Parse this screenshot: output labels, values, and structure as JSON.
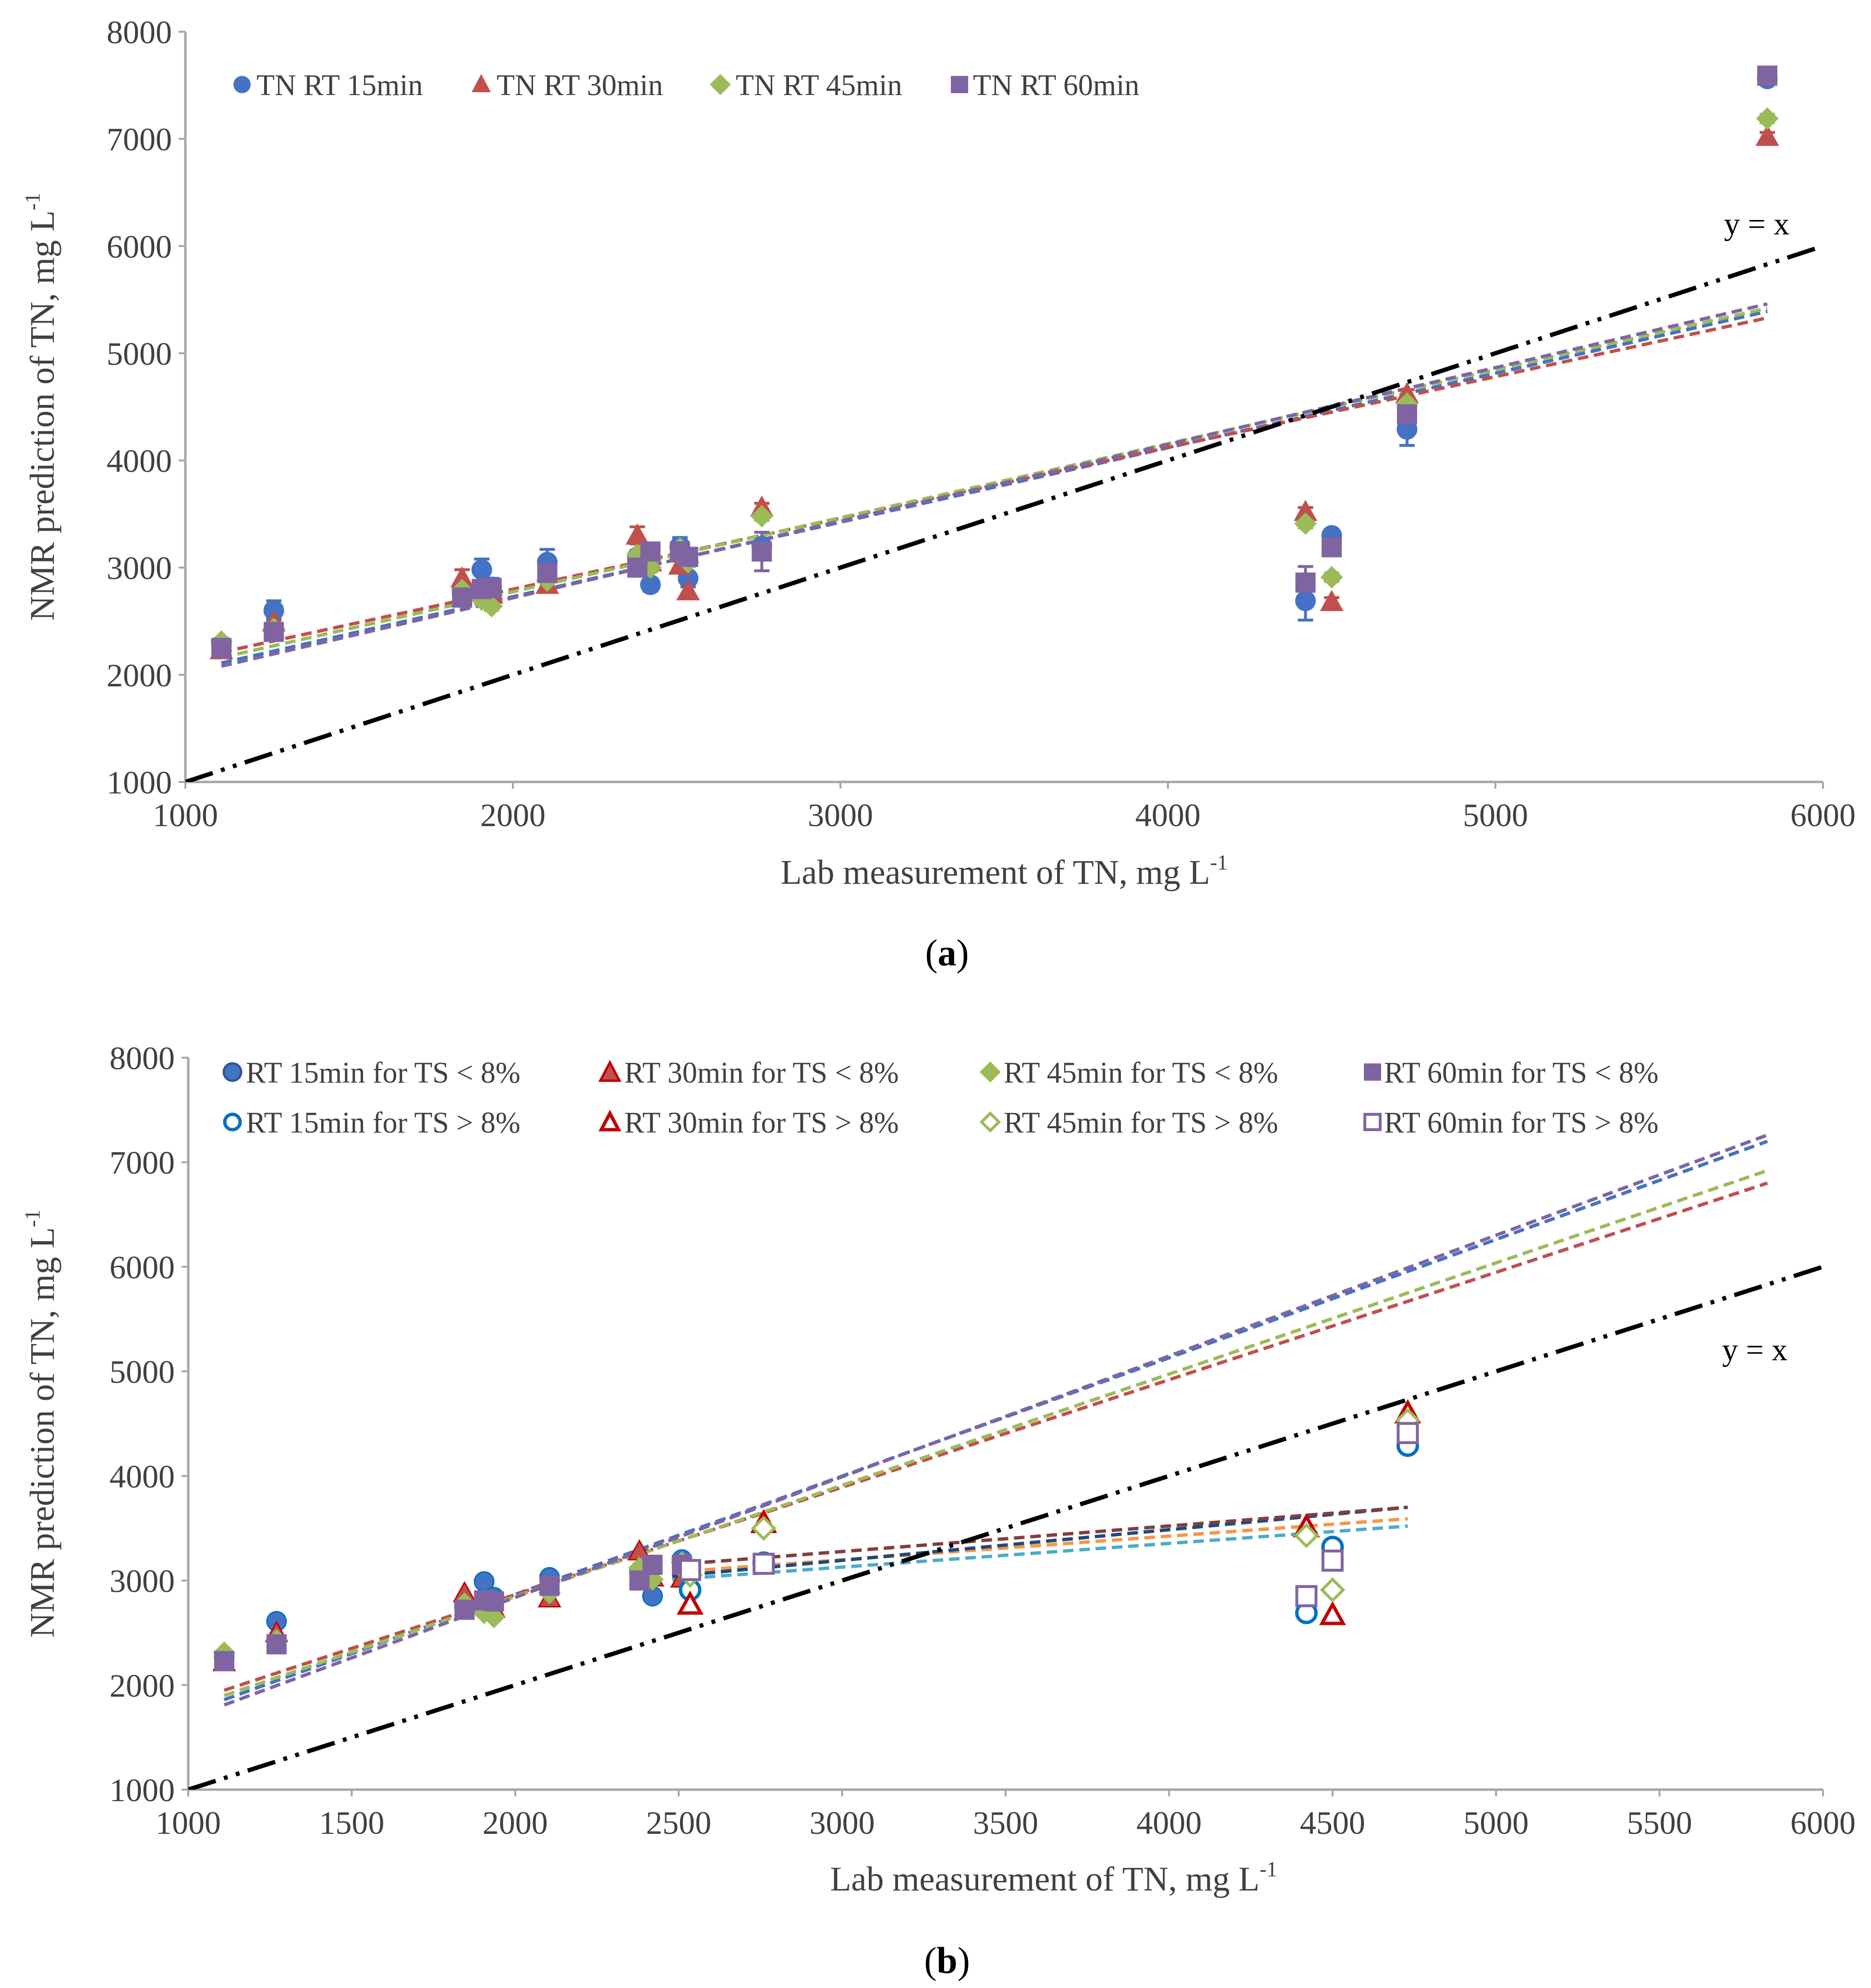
{
  "colors": {
    "blue": "#4472C4",
    "red": "#C0504D",
    "green": "#9BBB59",
    "purple": "#8064A2",
    "black": "#000000",
    "axis": "#A6A6A6"
  },
  "chart_data": [
    {
      "id": "a",
      "type": "scatter",
      "caption": "(a)",
      "xlabel": "Lab measurement of TN, mg L-1",
      "ylabel": "NMR prediction of TN, mg L-1",
      "xlim": [
        1000,
        6000
      ],
      "ylim": [
        1000,
        8000
      ],
      "xticks": [
        1000,
        2000,
        3000,
        4000,
        5000,
        6000
      ],
      "yticks": [
        1000,
        2000,
        3000,
        4000,
        5000,
        6000,
        7000,
        8000
      ],
      "reference_line": {
        "label": "y = x",
        "x": [
          1000,
          6000
        ],
        "y": [
          1000,
          6000
        ]
      },
      "series": [
        {
          "name": "TN RT 15min",
          "color": "blue",
          "marker": "circle",
          "points": [
            [
              1110,
              2280
            ],
            [
              1270,
              2600
            ],
            [
              1845,
              2750
            ],
            [
              1905,
              2980
            ],
            [
              1935,
              2820
            ],
            [
              2105,
              3050
            ],
            [
              2380,
              3100
            ],
            [
              2420,
              2840
            ],
            [
              2510,
              3200
            ],
            [
              2535,
              2900
            ],
            [
              2760,
              3200
            ],
            [
              4420,
              2690
            ],
            [
              4500,
              3300
            ],
            [
              4730,
              4290
            ],
            [
              5830,
              7560
            ]
          ],
          "errors": [
            30,
            90,
            40,
            100,
            80,
            120,
            40,
            60,
            80,
            40,
            40,
            180,
            40,
            150,
            40
          ],
          "trend": {
            "x": [
              1110,
              5830
            ],
            "y": [
              2110,
              5390
            ]
          }
        },
        {
          "name": "TN RT 30min",
          "color": "red",
          "marker": "triangle",
          "points": [
            [
              1110,
              2230
            ],
            [
              1270,
              2490
            ],
            [
              1845,
              2900
            ],
            [
              1905,
              2780
            ],
            [
              1935,
              2750
            ],
            [
              2105,
              2840
            ],
            [
              2380,
              3300
            ],
            [
              2420,
              3050
            ],
            [
              2510,
              3020
            ],
            [
              2535,
              2780
            ],
            [
              2760,
              3560
            ],
            [
              4420,
              3520
            ],
            [
              4500,
              2680
            ],
            [
              4730,
              4620
            ],
            [
              5830,
              7020
            ]
          ],
          "errors": [
            30,
            40,
            80,
            40,
            40,
            40,
            80,
            40,
            40,
            40,
            40,
            40,
            40,
            40,
            40
          ],
          "trend": {
            "x": [
              1110,
              5830
            ],
            "y": [
              2210,
              5330
            ]
          }
        },
        {
          "name": "TN RT 45min",
          "color": "green",
          "marker": "diamond",
          "points": [
            [
              1110,
              2310
            ],
            [
              1270,
              2430
            ],
            [
              1845,
              2790
            ],
            [
              1905,
              2700
            ],
            [
              1935,
              2640
            ],
            [
              2105,
              2880
            ],
            [
              2380,
              3120
            ],
            [
              2420,
              3000
            ],
            [
              2510,
              3180
            ],
            [
              2535,
              3050
            ],
            [
              2760,
              3480
            ],
            [
              4420,
              3410
            ],
            [
              4500,
              2910
            ],
            [
              4730,
              4530
            ],
            [
              5830,
              7190
            ]
          ],
          "errors": [
            30,
            30,
            40,
            40,
            40,
            40,
            40,
            40,
            40,
            40,
            40,
            40,
            40,
            40,
            40
          ],
          "trend": {
            "x": [
              1110,
              5830
            ],
            "y": [
              2160,
              5420
            ]
          }
        },
        {
          "name": "TN RT 60min",
          "color": "purple",
          "marker": "square",
          "points": [
            [
              1110,
              2250
            ],
            [
              1270,
              2400
            ],
            [
              1845,
              2720
            ],
            [
              1905,
              2800
            ],
            [
              1935,
              2810
            ],
            [
              2105,
              2950
            ],
            [
              2380,
              3000
            ],
            [
              2420,
              3150
            ],
            [
              2510,
              3150
            ],
            [
              2535,
              3100
            ],
            [
              2760,
              3150
            ],
            [
              4420,
              2860
            ],
            [
              4500,
              3190
            ],
            [
              4730,
              4430
            ],
            [
              5830,
              7590
            ]
          ],
          "errors": [
            30,
            30,
            40,
            40,
            40,
            40,
            40,
            40,
            40,
            40,
            180,
            150,
            60,
            40,
            40
          ],
          "trend": {
            "x": [
              1110,
              5830
            ],
            "y": [
              2080,
              5460
            ]
          }
        }
      ]
    },
    {
      "id": "b",
      "type": "scatter",
      "caption": "(b)",
      "xlabel": "Lab measurement of TN, mg L-1",
      "ylabel": "NMR prediction of TN, mg L-1",
      "xlim": [
        1000,
        6000
      ],
      "ylim": [
        1000,
        8000
      ],
      "xticks": [
        1000,
        1500,
        2000,
        2500,
        3000,
        3500,
        4000,
        4500,
        5000,
        5500,
        6000
      ],
      "yticks": [
        1000,
        2000,
        3000,
        4000,
        5000,
        6000,
        7000,
        8000
      ],
      "reference_line": {
        "label": "y = x",
        "x": [
          1000,
          6000
        ],
        "y": [
          1000,
          6000
        ]
      },
      "series": [
        {
          "name": "RT 15min for TS < 8%",
          "color": "blue",
          "marker": "circle",
          "filled": true,
          "points": [
            [
              1110,
              2270
            ],
            [
              1270,
              2610
            ],
            [
              1845,
              2750
            ],
            [
              1905,
              2990
            ],
            [
              1935,
              2840
            ],
            [
              2105,
              3030
            ],
            [
              2380,
              3080
            ],
            [
              2420,
              2850
            ],
            [
              2510,
              3200
            ]
          ],
          "trend": {
            "x": [
              1110,
              5830
            ],
            "y": [
              1860,
              7200
            ]
          }
        },
        {
          "name": "RT 30min for TS < 8%",
          "color": "red",
          "marker": "triangle",
          "filled": true,
          "points": [
            [
              1110,
              2220
            ],
            [
              1270,
              2500
            ],
            [
              1845,
              2880
            ],
            [
              1905,
              2780
            ],
            [
              1935,
              2730
            ],
            [
              2105,
              2830
            ],
            [
              2380,
              3280
            ],
            [
              2420,
              3030
            ],
            [
              2510,
              3020
            ]
          ],
          "trend": {
            "x": [
              1110,
              5830
            ],
            "y": [
              1950,
              6800
            ]
          }
        },
        {
          "name": "RT 45min for TS < 8%",
          "color": "green",
          "marker": "diamond",
          "filled": true,
          "points": [
            [
              1110,
              2310
            ],
            [
              1270,
              2430
            ],
            [
              1845,
              2780
            ],
            [
              1905,
              2690
            ],
            [
              1935,
              2650
            ],
            [
              2105,
              2880
            ],
            [
              2380,
              3120
            ],
            [
              2420,
              3010
            ],
            [
              2510,
              3170
            ]
          ],
          "trend": {
            "x": [
              1110,
              5830
            ],
            "y": [
              1900,
              6920
            ]
          }
        },
        {
          "name": "RT 60min for TS < 8%",
          "color": "purple",
          "marker": "square",
          "filled": true,
          "points": [
            [
              1110,
              2230
            ],
            [
              1270,
              2390
            ],
            [
              1845,
              2720
            ],
            [
              1905,
              2810
            ],
            [
              1935,
              2800
            ],
            [
              2105,
              2950
            ],
            [
              2380,
              3000
            ],
            [
              2420,
              3150
            ],
            [
              2510,
              3150
            ]
          ],
          "trend": {
            "x": [
              1110,
              5830
            ],
            "y": [
              1810,
              7260
            ]
          }
        },
        {
          "name": "RT 15min for TS > 8%",
          "color": "blue",
          "marker": "circle",
          "filled": false,
          "points": [
            [
              2535,
              2910
            ],
            [
              2760,
              3170
            ],
            [
              4420,
              2690
            ],
            [
              4500,
              3320
            ],
            [
              4730,
              4290
            ]
          ],
          "trend": {
            "x": [
              2480,
              4730
            ],
            "y": [
              3010,
              3520
            ]
          }
        },
        {
          "name": "RT 30min for TS > 8%",
          "color": "red",
          "marker": "triangle",
          "filled": false,
          "points": [
            [
              2535,
              2770
            ],
            [
              2760,
              3550
            ],
            [
              4420,
              3510
            ],
            [
              4500,
              2670
            ],
            [
              4730,
              4600
            ]
          ],
          "trend": {
            "x": [
              2480,
              4730
            ],
            "y": [
              3080,
              3590
            ]
          }
        },
        {
          "name": "RT 45min for TS > 8%",
          "color": "green",
          "marker": "diamond",
          "filled": false,
          "points": [
            [
              2535,
              3050
            ],
            [
              2760,
              3500
            ],
            [
              4420,
              3430
            ],
            [
              4500,
              2910
            ],
            [
              4730,
              4530
            ]
          ],
          "trend": {
            "x": [
              2480,
              4730
            ],
            "y": [
              3040,
              3700
            ]
          }
        },
        {
          "name": "RT 60min for TS > 8%",
          "color": "purple",
          "marker": "square",
          "filled": false,
          "points": [
            [
              2535,
              3100
            ],
            [
              2760,
              3160
            ],
            [
              4420,
              2850
            ],
            [
              4500,
              3190
            ],
            [
              4730,
              4410
            ]
          ],
          "trend": {
            "x": [
              2480,
              4730
            ],
            "y": [
              3150,
              3700
            ]
          }
        }
      ]
    }
  ]
}
